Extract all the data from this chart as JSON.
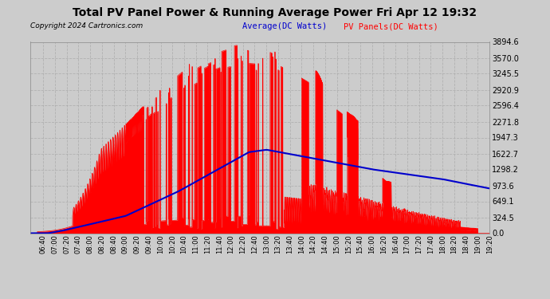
{
  "title": "Total PV Panel Power & Running Average Power Fri Apr 12 19:32",
  "copyright": "Copyright 2024 Cartronics.com",
  "legend_avg": "Average(DC Watts)",
  "legend_pv": "PV Panels(DC Watts)",
  "yticks": [
    0.0,
    324.5,
    649.1,
    973.6,
    1298.2,
    1622.7,
    1947.3,
    2271.8,
    2596.4,
    2920.9,
    3245.5,
    3570.0,
    3894.6
  ],
  "ymax": 3894.6,
  "ymin": 0.0,
  "bg_color": "#cccccc",
  "red_color": "#ff0000",
  "blue_color": "#0000cc"
}
